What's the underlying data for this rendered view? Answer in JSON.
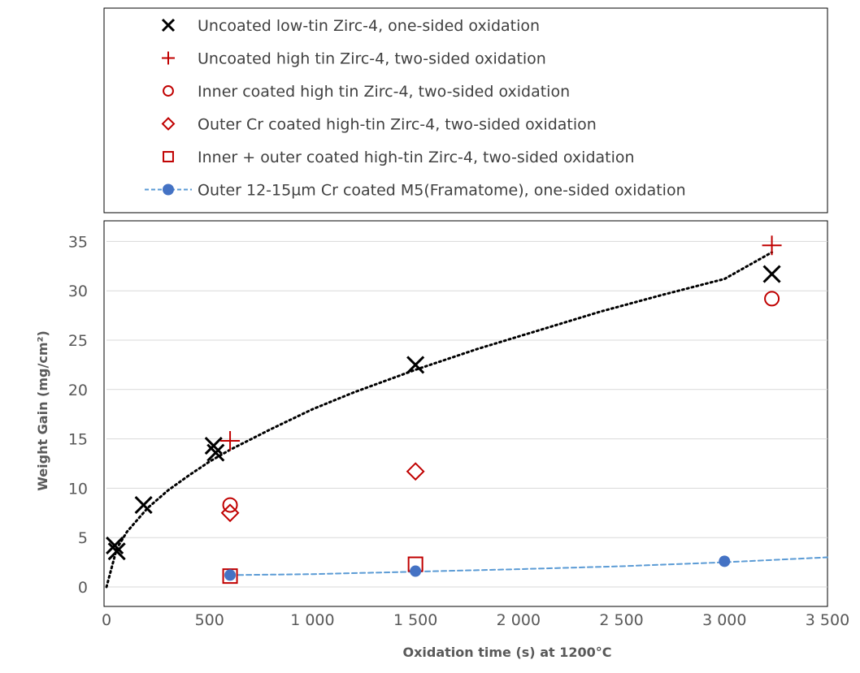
{
  "chart_data": {
    "type": "scatter",
    "title": "",
    "xlabel": "Oxidation time (s) at 1200°C",
    "ylabel": "Weight Gain (mg/cm²)",
    "xlim": [
      0,
      3500
    ],
    "ylim": [
      0,
      37
    ],
    "x_ticks": [
      0,
      500,
      1000,
      1500,
      2000,
      2500,
      3000,
      3500
    ],
    "x_tick_labels": [
      "0",
      "500",
      "1 000",
      "1 500",
      "2 000",
      "2 500",
      "3 000",
      "3 500"
    ],
    "y_ticks": [
      0,
      5,
      10,
      15,
      20,
      25,
      30,
      35
    ],
    "y_tick_labels": [
      "0",
      "5",
      "10",
      "15",
      "20",
      "25",
      "30",
      "35"
    ],
    "grid": "horizontal",
    "legend_position": "top",
    "series": [
      {
        "name": "Uncoated low-tin Zirc-4, one-sided oxidation",
        "marker": "x",
        "color": "#000000",
        "points": [
          [
            40,
            4.2
          ],
          [
            50,
            3.6
          ],
          [
            180,
            8.3
          ],
          [
            520,
            14.3
          ],
          [
            530,
            13.6
          ],
          [
            1500,
            22.5
          ],
          [
            3230,
            31.7
          ]
        ]
      },
      {
        "name": "Uncoated high tin Zirc-4, two-sided oxidation",
        "marker": "plus",
        "color": "#c00000",
        "points": [
          [
            600,
            14.8
          ],
          [
            3230,
            34.6
          ]
        ]
      },
      {
        "name": "Inner coated high tin Zirc-4, two-sided oxidation",
        "marker": "circle",
        "color": "#c00000",
        "points": [
          [
            600,
            8.3
          ],
          [
            3230,
            29.2
          ]
        ]
      },
      {
        "name": "Outer Cr coated high-tin Zirc-4, two-sided oxidation",
        "marker": "diamond",
        "color": "#c00000",
        "points": [
          [
            600,
            7.5
          ],
          [
            1500,
            11.7
          ]
        ]
      },
      {
        "name": "Inner + outer coated high-tin Zirc-4, two-sided oxidation",
        "marker": "square",
        "color": "#c00000",
        "points": [
          [
            600,
            1.1
          ],
          [
            1500,
            2.3
          ]
        ]
      },
      {
        "name": "Outer 12-15µm Cr coated M5(Framatome), one-sided oxidation",
        "marker": "filled-circle",
        "color": "#4472c4",
        "points": [
          [
            600,
            1.2
          ],
          [
            1500,
            1.6
          ],
          [
            3000,
            2.6
          ]
        ]
      }
    ],
    "trendlines": [
      {
        "style": "dotted",
        "color": "#000000",
        "points": [
          [
            0,
            0
          ],
          [
            50,
            3.9
          ],
          [
            100,
            5.6
          ],
          [
            200,
            8.0
          ],
          [
            300,
            9.8
          ],
          [
            400,
            11.3
          ],
          [
            500,
            12.7
          ],
          [
            600,
            13.9
          ],
          [
            800,
            16.0
          ],
          [
            1000,
            18.0
          ],
          [
            1200,
            19.7
          ],
          [
            1500,
            22.0
          ],
          [
            1800,
            24.1
          ],
          [
            2100,
            26.0
          ],
          [
            2400,
            27.9
          ],
          [
            2700,
            29.6
          ],
          [
            3000,
            31.2
          ],
          [
            3230,
            33.9
          ]
        ]
      },
      {
        "style": "dashed",
        "color": "#5b9bd5",
        "points": [
          [
            600,
            1.2
          ],
          [
            1000,
            1.3
          ],
          [
            1500,
            1.55
          ],
          [
            2000,
            1.8
          ],
          [
            2500,
            2.1
          ],
          [
            3000,
            2.5
          ],
          [
            3500,
            3.0
          ]
        ]
      }
    ]
  }
}
